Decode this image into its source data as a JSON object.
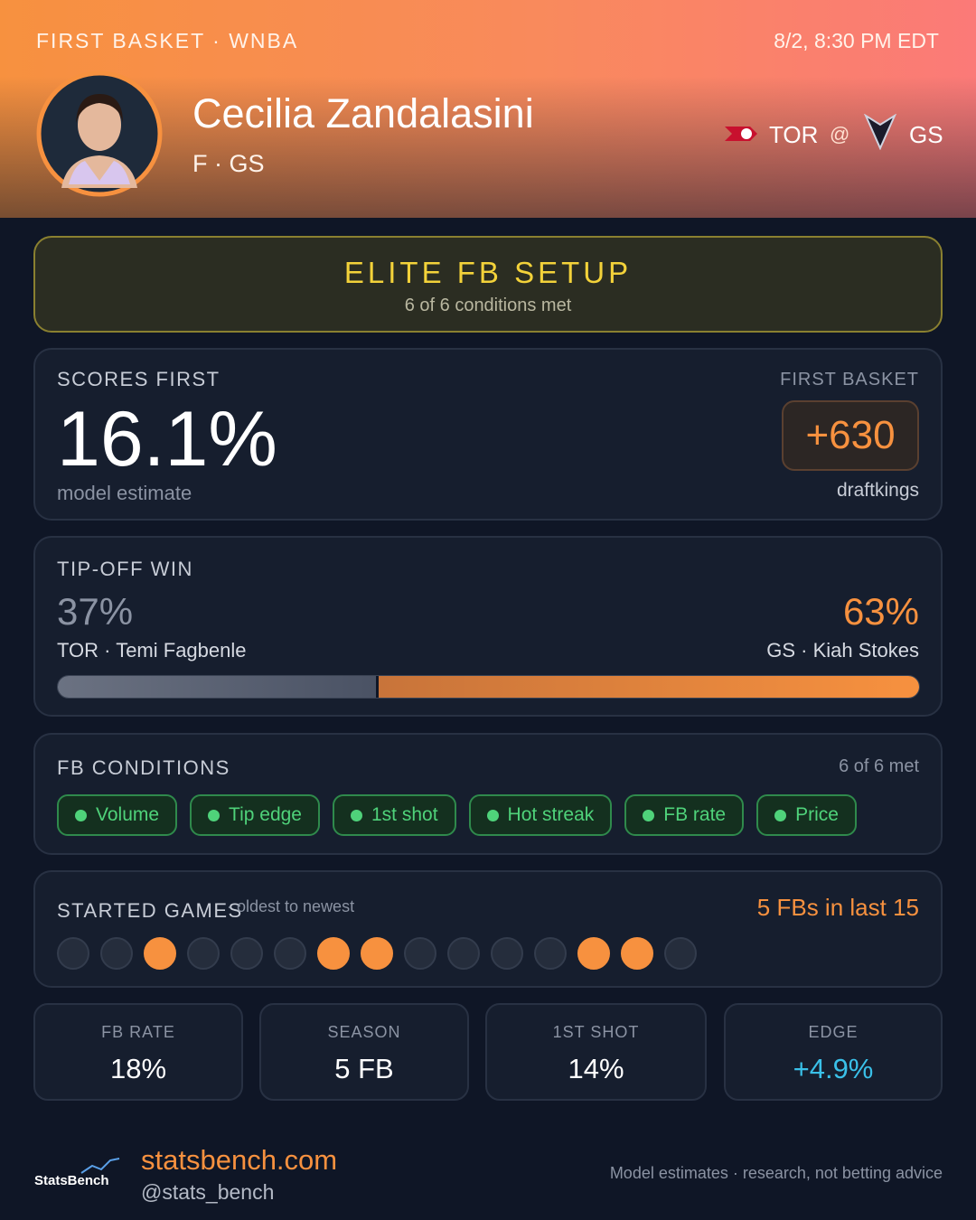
{
  "header": {
    "league": "FIRST BASKET · WNBA",
    "datetime": "8/2, 8:30 PM EDT",
    "player": "Cecilia Zandalasini",
    "position": "F · GS",
    "away": "TOR",
    "at": "@",
    "home": "GS"
  },
  "banner": {
    "title": "ELITE FB SETUP",
    "subtitle": "6 of 6 conditions met"
  },
  "scores_first": {
    "label": "SCORES FIRST",
    "value": "16.1%",
    "note": "model estimate",
    "odds_label": "FIRST BASKET",
    "odds": "+630",
    "book": "draftkings"
  },
  "tipoff": {
    "label": "TIP-OFF WIN",
    "away": {
      "pct": {
        "value": 37,
        "label": "37%"
      },
      "player": "TOR · Temi Fagbenle"
    },
    "home": {
      "pct": {
        "value": 63,
        "label": "63%"
      },
      "player": "GS · Kiah Stokes"
    }
  },
  "conditions": {
    "label": "FB CONDITIONS",
    "summary": "6 of 6 met",
    "items": [
      "Volume",
      "Tip edge",
      "1st shot",
      "Hot streak",
      "FB rate",
      "Price"
    ]
  },
  "started_games": {
    "label": "STARTED GAMES",
    "note": "· oldest to newest",
    "summary": "5 FBs in last 15",
    "games": [
      0,
      0,
      1,
      0,
      0,
      0,
      1,
      1,
      0,
      0,
      0,
      0,
      1,
      1,
      0
    ]
  },
  "stats": [
    {
      "label": "FB RATE",
      "value": "18%"
    },
    {
      "label": "SEASON",
      "value": "5 FB"
    },
    {
      "label": "1ST SHOT",
      "value": "14%"
    },
    {
      "label": "EDGE",
      "value": "+4.9%"
    }
  ],
  "footer": {
    "logo": "StatsBench",
    "site": "statsbench.com",
    "handle": "@stats_bench",
    "disclaimer": "Model estimates · research, not betting advice"
  }
}
